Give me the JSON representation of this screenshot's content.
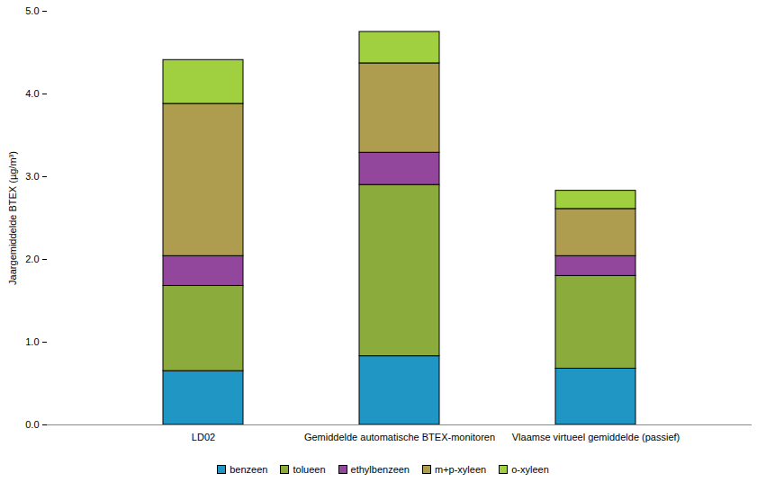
{
  "chart_data": {
    "type": "bar",
    "stacked": true,
    "y_label": "Jaargemiddelde BTEX (µg/m³)",
    "categories": [
      "LD02",
      "Gemiddelde automatische BTEX-monitoren",
      "Vlaamse virtueel gemiddelde (passief)"
    ],
    "series": [
      {
        "name": "benzeen",
        "color": "#1f96c4",
        "values": [
          0.65,
          0.83,
          0.68
        ]
      },
      {
        "name": "tolueen",
        "color": "#8bac3c",
        "values": [
          1.03,
          2.07,
          1.12
        ]
      },
      {
        "name": "ethylbenzeen",
        "color": "#93479c",
        "values": [
          0.36,
          0.39,
          0.24
        ]
      },
      {
        "name": "m+p-xyleen",
        "color": "#ae9c4f",
        "values": [
          1.84,
          1.08,
          0.57
        ]
      },
      {
        "name": "o-xyleen",
        "color": "#a0cf40",
        "values": [
          0.53,
          0.38,
          0.22
        ]
      }
    ],
    "ylim": [
      0,
      5
    ],
    "yticks": [
      0,
      1,
      2,
      3,
      4,
      5
    ],
    "grid": false,
    "legend": "bottom"
  }
}
